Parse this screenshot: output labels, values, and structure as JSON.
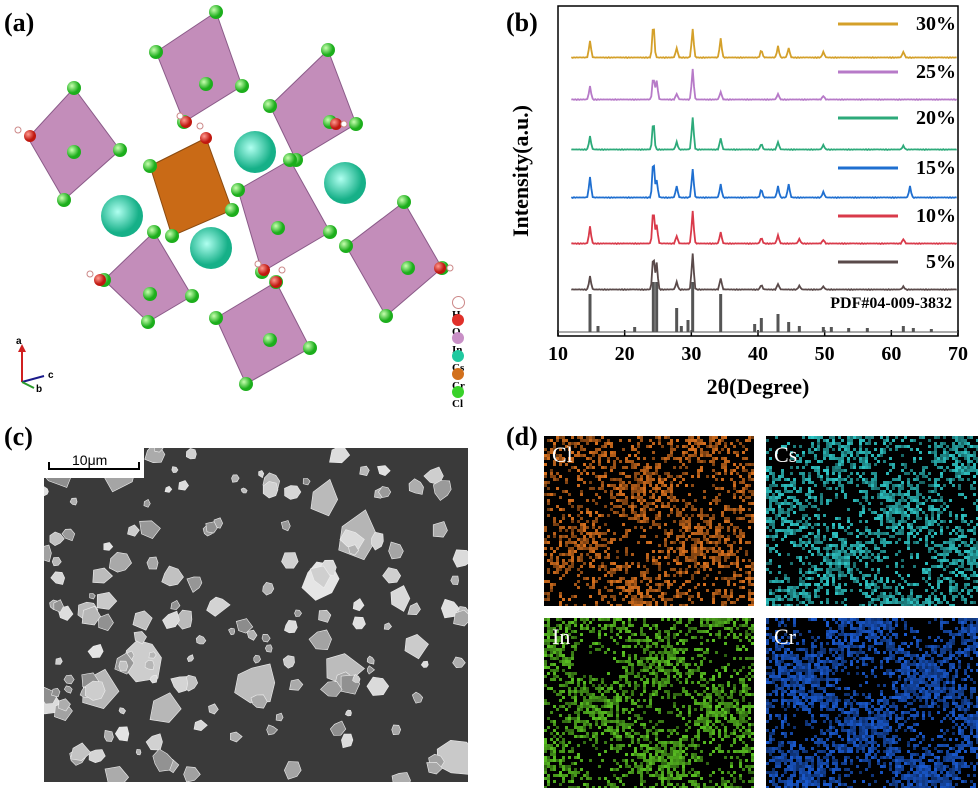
{
  "figure": {
    "panel_labels": [
      "(a)",
      "(b)",
      "(c)",
      "(d)"
    ]
  },
  "panel_a": {
    "legend": [
      {
        "symbol": "H",
        "color": "#ffffff"
      },
      {
        "symbol": "O",
        "color": "#e0302a"
      },
      {
        "symbol": "In",
        "color": "#c88fc6"
      },
      {
        "symbol": "Cs",
        "color": "#20c9a0"
      },
      {
        "symbol": "Cr",
        "color": "#d2701c"
      },
      {
        "symbol": "Cl",
        "color": "#39d22a"
      }
    ],
    "axes": {
      "a": "a",
      "b": "b",
      "c": "c"
    }
  },
  "chart_data": {
    "type": "line",
    "xlabel": "2θ(Degree)",
    "ylabel": "Intensity(a.u.)",
    "xlim": [
      10,
      70
    ],
    "xticks": [
      "10",
      "20",
      "30",
      "40",
      "50",
      "60",
      "70"
    ],
    "reference_label": "PDF#04-009-3832",
    "reference_peaks": [
      14.8,
      16.0,
      21.5,
      24.3,
      24.8,
      27.8,
      28.5,
      29.5,
      30.2,
      34.4,
      39.5,
      40.5,
      43.0,
      44.6,
      46.2,
      49.8,
      51.0,
      53.6,
      56.4,
      61.8,
      63.3,
      66.0
    ],
    "series": [
      {
        "name": "5%",
        "color": "#5a4a4a",
        "peaks": [
          [
            14.8,
            0.35
          ],
          [
            24.3,
            0.9
          ],
          [
            24.8,
            0.7
          ],
          [
            27.8,
            0.2
          ],
          [
            30.2,
            0.95
          ],
          [
            34.4,
            0.3
          ],
          [
            40.5,
            0.12
          ],
          [
            43.0,
            0.15
          ],
          [
            46.2,
            0.1
          ],
          [
            49.8,
            0.08
          ],
          [
            61.8,
            0.08
          ]
        ]
      },
      {
        "name": "10%",
        "color": "#d93a4a",
        "peaks": [
          [
            14.8,
            0.45
          ],
          [
            24.3,
            0.9
          ],
          [
            24.8,
            0.5
          ],
          [
            27.8,
            0.2
          ],
          [
            30.2,
            0.85
          ],
          [
            34.4,
            0.3
          ],
          [
            40.5,
            0.15
          ],
          [
            43.0,
            0.22
          ],
          [
            46.2,
            0.12
          ],
          [
            49.8,
            0.1
          ],
          [
            61.8,
            0.12
          ]
        ]
      },
      {
        "name": "15%",
        "color": "#1f6fd0",
        "peaks": [
          [
            14.8,
            0.55
          ],
          [
            24.3,
            1.0
          ],
          [
            24.8,
            0.45
          ],
          [
            27.8,
            0.3
          ],
          [
            30.2,
            0.75
          ],
          [
            34.4,
            0.35
          ],
          [
            40.5,
            0.22
          ],
          [
            43.0,
            0.3
          ],
          [
            44.6,
            0.35
          ],
          [
            49.8,
            0.15
          ],
          [
            62.8,
            0.3
          ]
        ]
      },
      {
        "name": "20%",
        "color": "#2daa7a",
        "peaks": [
          [
            14.8,
            0.35
          ],
          [
            24.3,
            0.75
          ],
          [
            27.8,
            0.2
          ],
          [
            30.2,
            0.85
          ],
          [
            34.4,
            0.3
          ],
          [
            40.5,
            0.15
          ],
          [
            43.0,
            0.2
          ],
          [
            49.8,
            0.12
          ],
          [
            61.8,
            0.1
          ]
        ]
      },
      {
        "name": "25%",
        "color": "#b77ac8",
        "peaks": [
          [
            14.8,
            0.35
          ],
          [
            24.3,
            0.6
          ],
          [
            24.8,
            0.5
          ],
          [
            27.8,
            0.15
          ],
          [
            30.2,
            0.8
          ],
          [
            34.4,
            0.2
          ],
          [
            43.0,
            0.15
          ],
          [
            49.8,
            0.1
          ]
        ]
      },
      {
        "name": "30%",
        "color": "#d4a02a",
        "peaks": [
          [
            14.8,
            0.45
          ],
          [
            24.3,
            0.9
          ],
          [
            27.8,
            0.25
          ],
          [
            30.2,
            0.75
          ],
          [
            34.4,
            0.5
          ],
          [
            40.5,
            0.2
          ],
          [
            43.0,
            0.3
          ],
          [
            44.6,
            0.25
          ],
          [
            49.8,
            0.15
          ],
          [
            61.8,
            0.15
          ]
        ]
      }
    ],
    "legend_labels": [
      "30%",
      "25%",
      "20%",
      "15%",
      "10%",
      "5%"
    ]
  },
  "panel_c": {
    "scale_bar": "10μm"
  },
  "panel_d": {
    "maps": [
      {
        "element": "Cl",
        "color": "#d9711e"
      },
      {
        "element": "Cs",
        "color": "#2ec4c4"
      },
      {
        "element": "In",
        "color": "#5ac222"
      },
      {
        "element": "Cr",
        "color": "#1a5ad0"
      }
    ]
  }
}
